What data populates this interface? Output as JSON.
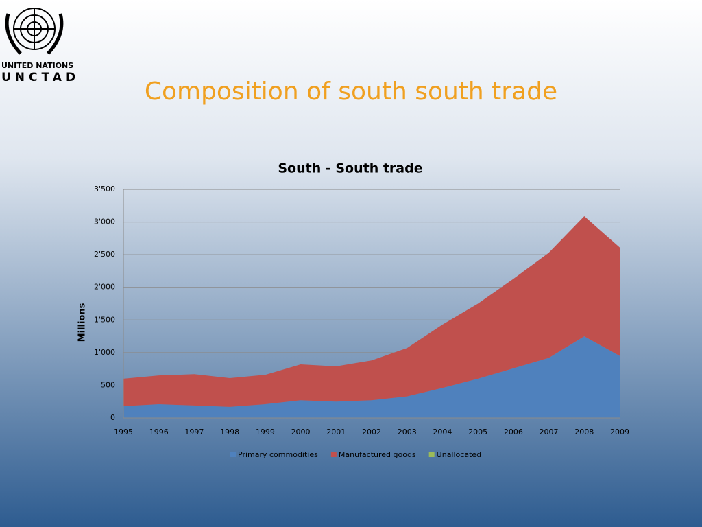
{
  "logo": {
    "line1": "UNITED NATIONS",
    "line2": "UNCTAD"
  },
  "slide_title": "Composition of south south trade",
  "chart_data": {
    "type": "stacked-area",
    "title": "South - South trade",
    "y_label": "Millions",
    "categories": [
      "1995",
      "1996",
      "1997",
      "1998",
      "1999",
      "2000",
      "2001",
      "2002",
      "2003",
      "2004",
      "2005",
      "2006",
      "2007",
      "2008",
      "2009"
    ],
    "series": [
      {
        "name": "Primary commodities",
        "color": "#4f81bd",
        "values": [
          180,
          210,
          190,
          170,
          210,
          270,
          250,
          270,
          330,
          460,
          600,
          760,
          920,
          1250,
          950
        ]
      },
      {
        "name": "Manufactured goods",
        "color": "#c0504d",
        "values": [
          420,
          440,
          480,
          440,
          450,
          550,
          540,
          610,
          740,
          970,
          1150,
          1370,
          1610,
          1840,
          1660
        ]
      },
      {
        "name": "Unallocated",
        "color": "#9bbb59",
        "values": [
          0,
          0,
          0,
          0,
          0,
          0,
          0,
          0,
          0,
          0,
          0,
          0,
          0,
          0,
          0
        ]
      }
    ],
    "ylim": [
      0,
      3500
    ],
    "yticks": [
      0,
      500,
      {
        "value": 1000,
        "label": "1'000"
      },
      {
        "value": 1500,
        "label": "1'500"
      },
      {
        "value": 2000,
        "label": "2'000"
      },
      {
        "value": 2500,
        "label": "2'500"
      },
      {
        "value": 3000,
        "label": "3'000"
      },
      {
        "value": 3500,
        "label": "3'500"
      }
    ],
    "grid": true,
    "legend": "bottom"
  }
}
